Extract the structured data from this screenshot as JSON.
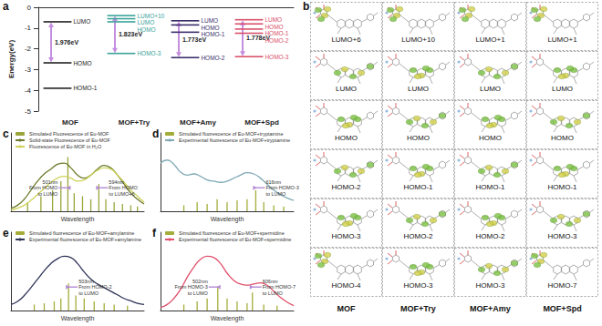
{
  "chart_data": [
    {
      "type": "levels",
      "panel": "a",
      "ylabel": "Energy(eV)",
      "categories": [
        "MOF",
        "MOF+Try",
        "MOF+Amy",
        "MOF+Spd"
      ],
      "colors": [
        "#222222",
        "#3aa39a",
        "#3b2f6b",
        "#d9506a"
      ],
      "ylim": [
        -5,
        0
      ],
      "yticks": [
        -5,
        -4,
        -3,
        -2,
        -1,
        0
      ],
      "grid": false,
      "levels": [
        [
          {
            "name": "LUMO",
            "value": -0.7
          },
          {
            "name": "HOMO",
            "value": -2.676
          },
          {
            "name": "HOMO-1",
            "value": -3.9
          }
        ],
        [
          {
            "name": "LUMO+10",
            "value": -0.4
          },
          {
            "name": "LUMO",
            "value": -0.55
          },
          {
            "name": "HOMO",
            "value": -0.7
          },
          {
            "name": "HOMO-3",
            "value": -2.223
          }
        ],
        [
          {
            "name": "LUMO",
            "value": -0.65
          },
          {
            "name": "HOMO",
            "value": -0.85
          },
          {
            "name": "HOMO-1",
            "value": -1.2
          },
          {
            "name": "HOMO-2",
            "value": -2.423
          }
        ],
        [
          {
            "name": "LUMO",
            "value": -0.6
          },
          {
            "name": "HOMO",
            "value": -0.8
          },
          {
            "name": "HOMO-1",
            "value": -1.05
          },
          {
            "name": "HOMO-2",
            "value": -1.25
          },
          {
            "name": "HOMO-3",
            "value": -2.378
          }
        ]
      ],
      "gaps": {
        "color": "#c58fe0",
        "items": [
          {
            "from": "LUMO",
            "to": "HOMO",
            "label": "1.976eV"
          },
          {
            "from": "LUMO+10",
            "to": "HOMO-3",
            "label": "1.823eV"
          },
          {
            "from": "LUMO",
            "to": "HOMO-2",
            "label": "1.773eV"
          },
          {
            "from": "LUMO",
            "to": "HOMO-3",
            "label": "1.778eV"
          }
        ]
      }
    },
    {
      "type": "spectrum",
      "panel": "c",
      "xlabel": "Wavelength",
      "xlim": [
        330,
        730
      ],
      "ylim": [
        0,
        1.3
      ],
      "tick_labels": false,
      "legend": "upper left",
      "series": [
        {
          "name": "Simulated Fluorescence of Eu-MOF",
          "type": "bar",
          "color": "#9aa63a",
          "x": [
            380,
            420,
            455,
            480,
            501,
            520,
            545,
            570,
            594,
            615,
            640,
            665,
            690,
            710
          ],
          "values": [
            0.15,
            0.25,
            0.35,
            0.5,
            0.9,
            0.3,
            0.25,
            0.2,
            0.45,
            0.2,
            0.15,
            0.12,
            0.1,
            0.08
          ]
        },
        {
          "name": "Solid-state Fluorescence of Eu-MOF",
          "type": "line",
          "color": "#6b7a2a",
          "x": [
            330,
            350,
            370,
            390,
            410,
            430,
            450,
            470,
            490,
            510,
            530,
            550,
            570,
            590,
            610,
            630,
            650,
            670,
            690,
            710,
            730
          ],
          "values": [
            0.05,
            0.1,
            0.2,
            0.35,
            0.5,
            0.62,
            0.7,
            0.78,
            0.8,
            0.72,
            0.6,
            0.55,
            0.6,
            0.7,
            0.76,
            0.72,
            0.6,
            0.45,
            0.3,
            0.2,
            0.12
          ]
        },
        {
          "name": "Fluorescence of Eu-MOF in H₂O",
          "type": "line",
          "color": "#cfd35a",
          "x": [
            330,
            350,
            370,
            390,
            410,
            430,
            450,
            470,
            490,
            510,
            530,
            550,
            570,
            590,
            610,
            630,
            650,
            670,
            690,
            710,
            730
          ],
          "values": [
            0.02,
            0.05,
            0.1,
            0.18,
            0.28,
            0.38,
            0.48,
            0.55,
            0.58,
            0.55,
            0.5,
            0.52,
            0.6,
            0.68,
            0.72,
            0.7,
            0.6,
            0.48,
            0.35,
            0.25,
            0.15
          ]
        }
      ],
      "annotations": [
        {
          "text": "501nm\nFrom HOMO\nto LUMO",
          "x": 501
        },
        {
          "text": "594nm\nFrom HOMO\nto LUMO+6",
          "x": 594
        }
      ]
    },
    {
      "type": "spectrum",
      "panel": "d",
      "xlabel": "Wavelength",
      "xlim": [
        330,
        730
      ],
      "ylim": [
        0,
        1.3
      ],
      "tick_labels": false,
      "legend": "upper left",
      "series": [
        {
          "name": "Simulated fluorescence of Eu-MOF+tryptamine",
          "type": "bar",
          "color": "#a5ad3a",
          "x": [
            400,
            440,
            470,
            500,
            530,
            560,
            590,
            616,
            640,
            670,
            700
          ],
          "values": [
            0.1,
            0.15,
            0.12,
            0.2,
            0.15,
            0.18,
            0.2,
            0.35,
            0.15,
            0.1,
            0.08
          ]
        },
        {
          "name": "Experimental fluorescence of Eu-MOF+tryptamine",
          "type": "line",
          "color": "#7fa9b5",
          "x": [
            330,
            350,
            370,
            390,
            410,
            430,
            450,
            470,
            490,
            510,
            530,
            550,
            570,
            590,
            610,
            630,
            650,
            670,
            690,
            710,
            730
          ],
          "values": [
            0.8,
            0.85,
            0.78,
            0.65,
            0.6,
            0.62,
            0.58,
            0.52,
            0.5,
            0.48,
            0.5,
            0.55,
            0.6,
            0.64,
            0.62,
            0.55,
            0.45,
            0.35,
            0.28,
            0.22,
            0.18
          ]
        }
      ],
      "annotations": [
        {
          "text": "616nm\nFrom HOMO-3\nto LUMO",
          "x": 616
        }
      ]
    },
    {
      "type": "spectrum",
      "panel": "e",
      "xlabel": "Wavelength",
      "xlim": [
        330,
        730
      ],
      "ylim": [
        0,
        1.3
      ],
      "tick_labels": false,
      "legend": "upper left",
      "series": [
        {
          "name": "Simulated fluorescence of Eu-MOF+amylamine",
          "type": "bar",
          "color": "#a5ad3a",
          "x": [
            400,
            430,
            460,
            480,
            503,
            525,
            550,
            580,
            610,
            640,
            680
          ],
          "values": [
            0.1,
            0.12,
            0.15,
            0.2,
            0.45,
            0.25,
            0.2,
            0.15,
            0.12,
            0.1,
            0.08
          ]
        },
        {
          "name": "Experimental fluorescence of Eu-MOF+amylamine",
          "type": "line",
          "color": "#2e3357",
          "x": [
            330,
            350,
            370,
            390,
            410,
            430,
            450,
            470,
            490,
            510,
            530,
            550,
            570,
            590,
            610,
            630,
            650,
            670,
            690,
            710,
            730
          ],
          "values": [
            0.1,
            0.15,
            0.25,
            0.38,
            0.52,
            0.66,
            0.78,
            0.86,
            0.9,
            0.88,
            0.78,
            0.64,
            0.52,
            0.44,
            0.38,
            0.32,
            0.26,
            0.2,
            0.16,
            0.12,
            0.1
          ]
        }
      ],
      "annotations": [
        {
          "text": "503nm\nFrom HOMO-2\nto LUMO",
          "x": 503
        }
      ]
    },
    {
      "type": "spectrum",
      "panel": "f",
      "xlabel": "Wavelength",
      "xlim": [
        330,
        730
      ],
      "ylim": [
        0,
        1.3
      ],
      "tick_labels": false,
      "legend": "upper left",
      "series": [
        {
          "name": "Simulated fluorescence of Eu-MOF+spermidine",
          "type": "bar",
          "color": "#a5ad3a",
          "x": [
            400,
            440,
            470,
            502,
            530,
            560,
            590,
            606,
            640,
            680
          ],
          "values": [
            0.1,
            0.15,
            0.2,
            0.4,
            0.2,
            0.15,
            0.12,
            0.3,
            0.1,
            0.08
          ]
        },
        {
          "name": "Experimental fluorescence of Eu-MOF+spermidine",
          "type": "line",
          "color": "#e0506b",
          "x": [
            330,
            350,
            370,
            390,
            410,
            430,
            450,
            470,
            490,
            510,
            530,
            550,
            570,
            590,
            610,
            630,
            650,
            670,
            690,
            710,
            730
          ],
          "values": [
            0.05,
            0.1,
            0.2,
            0.35,
            0.55,
            0.72,
            0.85,
            0.9,
            0.88,
            0.78,
            0.62,
            0.5,
            0.44,
            0.42,
            0.44,
            0.46,
            0.42,
            0.32,
            0.22,
            0.14,
            0.08
          ]
        }
      ],
      "annotations": [
        {
          "text": "502nm\nFrom HOMO-3\nto LUMO",
          "x": 502
        },
        {
          "text": "606nm\nFrom HOMO-7\nto LUMO",
          "x": 606
        }
      ]
    }
  ],
  "orbitals": {
    "panel": "b",
    "columns": [
      {
        "name": "MOF",
        "orbitals": [
          "LUMO+6",
          "LUMO",
          "HOMO",
          "HOMO-2",
          "HOMO-3",
          "HOMO-4"
        ]
      },
      {
        "name": "MOF+Try",
        "orbitals": [
          "LUMO+10",
          "LUMO",
          "HOMO",
          "HOMO-1",
          "HOMO-2",
          "HOMO-3"
        ]
      },
      {
        "name": "MOF+Amy",
        "orbitals": [
          "LUMO+1",
          "LUMO",
          "HOMO",
          "HOMO-1",
          "HOMO-2",
          "HOMO-3"
        ]
      },
      {
        "name": "MOF+Spd",
        "orbitals": [
          "LUMO+1",
          "LUMO",
          "HOMO",
          "HOMO-1",
          "HOMO-3",
          "HOMO-7"
        ]
      }
    ]
  }
}
